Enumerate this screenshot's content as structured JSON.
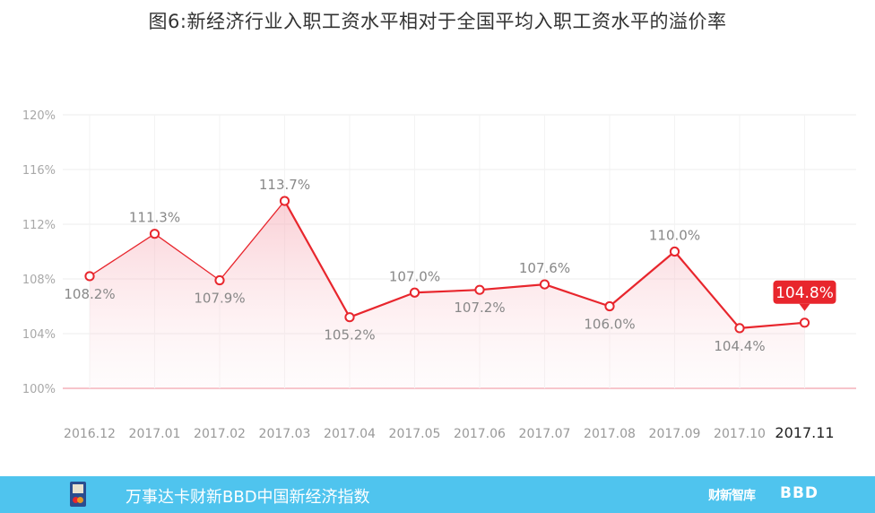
{
  "title": "图6:新经济行业入职工资水平相对于全国平均入职工资水平的溢价率",
  "chart_data": {
    "type": "area",
    "categories": [
      "2016.12",
      "2017.01",
      "2017.02",
      "2017.03",
      "2017.04",
      "2017.05",
      "2017.06",
      "2017.07",
      "2017.08",
      "2017.09",
      "2017.10",
      "2017.11"
    ],
    "values": [
      108.2,
      111.3,
      107.9,
      113.7,
      105.2,
      107.0,
      107.2,
      107.6,
      106.0,
      110.0,
      104.4,
      104.8
    ],
    "data_labels": [
      "108.2%",
      "111.3%",
      "107.9%",
      "113.7%",
      "105.2%",
      "107.0%",
      "107.2%",
      "107.6%",
      "106.0%",
      "110.0%",
      "104.4%",
      "104.8%"
    ],
    "y_ticks": [
      100,
      104,
      108,
      112,
      116,
      120
    ],
    "y_tick_labels": [
      "100%",
      "104%",
      "108%",
      "112%",
      "116%",
      "120%"
    ],
    "ylim": [
      100,
      120
    ],
    "highlighted_point": "2017.11",
    "colors": {
      "line": "#e8262d",
      "baseline": "#f2a0ac",
      "grid": "#ececec",
      "label": "#888888",
      "callout": "#e8262d"
    },
    "grid": true
  },
  "footer": {
    "text": "万事达卡财新BBD中国新经济指数",
    "brand1": "财新智库",
    "brand2": "BBD",
    "logo_icon": "mastercard-card-icon"
  }
}
